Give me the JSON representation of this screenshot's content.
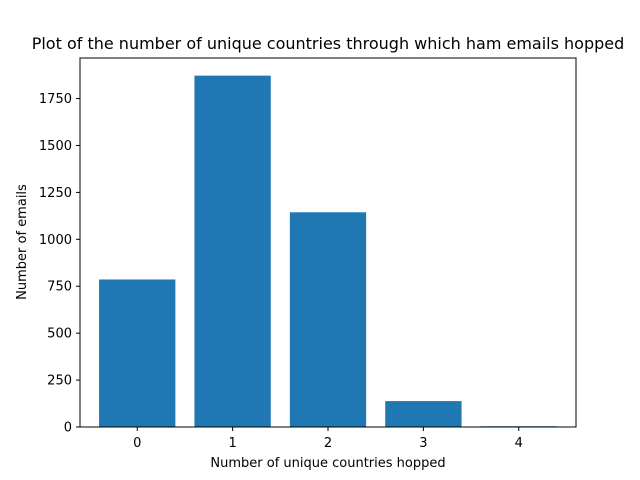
{
  "chart_data": {
    "type": "bar",
    "title": "Plot of the number of unique countries through which ham emails hopped",
    "xlabel": "Number of unique countries hopped",
    "ylabel": "Number of emails",
    "categories": [
      "0",
      "1",
      "2",
      "3",
      "4"
    ],
    "values": [
      786,
      1872,
      1144,
      138,
      4
    ],
    "ylim": [
      0,
      1966
    ],
    "yticks": [
      0,
      250,
      500,
      750,
      1000,
      1250,
      1500,
      1750
    ],
    "ytick_labels": [
      "0",
      "250",
      "500",
      "750",
      "1000",
      "1250",
      "1500",
      "1750"
    ],
    "grid": false,
    "bar_color": "#1f77b4"
  }
}
